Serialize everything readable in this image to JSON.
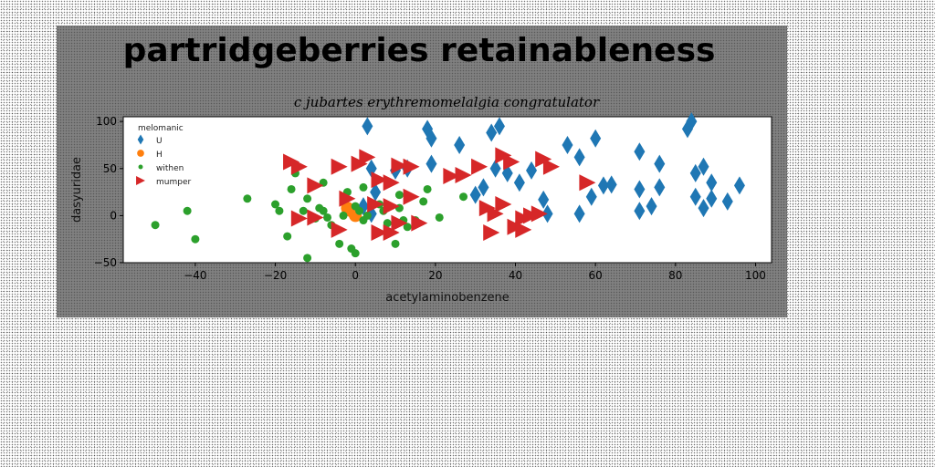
{
  "chart_data": {
    "type": "scatter",
    "title": "partridgeberries retainableness",
    "subtitle": "c jubartes erythremomelalgia congratulator",
    "xlabel": "acetylaminobenzene",
    "ylabel": "dasyuridae",
    "xlim": [
      -58,
      104
    ],
    "ylim": [
      -50,
      105
    ],
    "xticks": [
      -40,
      -20,
      0,
      20,
      40,
      60,
      80,
      100
    ],
    "yticks": [
      -50,
      0,
      50,
      100
    ],
    "grid": false,
    "legend": {
      "title": "melomanic",
      "placement": "top-left"
    },
    "series": [
      {
        "name": "U",
        "marker": "diamond",
        "color": "#1f77b4",
        "points": [
          [
            2,
            10
          ],
          [
            4,
            2
          ],
          [
            5,
            25
          ],
          [
            3,
            95
          ],
          [
            4,
            50
          ],
          [
            10,
            48
          ],
          [
            13,
            50
          ],
          [
            18,
            92
          ],
          [
            19,
            82
          ],
          [
            19,
            55
          ],
          [
            26,
            75
          ],
          [
            30,
            22
          ],
          [
            32,
            30
          ],
          [
            34,
            88
          ],
          [
            35,
            50
          ],
          [
            36,
            95
          ],
          [
            38,
            45
          ],
          [
            41,
            35
          ],
          [
            44,
            48
          ],
          [
            47,
            17
          ],
          [
            48,
            2
          ],
          [
            53,
            75
          ],
          [
            56,
            62
          ],
          [
            56,
            2
          ],
          [
            59,
            20
          ],
          [
            60,
            82
          ],
          [
            62,
            32
          ],
          [
            64,
            33
          ],
          [
            71,
            68
          ],
          [
            71,
            28
          ],
          [
            71,
            5
          ],
          [
            74,
            10
          ],
          [
            76,
            55
          ],
          [
            76,
            30
          ],
          [
            83,
            92
          ],
          [
            84,
            100
          ],
          [
            85,
            45
          ],
          [
            85,
            20
          ],
          [
            87,
            52
          ],
          [
            87,
            8
          ],
          [
            89,
            35
          ],
          [
            89,
            18
          ],
          [
            93,
            15
          ],
          [
            96,
            32
          ]
        ]
      },
      {
        "name": "H",
        "marker": "circle",
        "color": "#ff7f0e",
        "points": [
          [
            -1,
            5
          ],
          [
            0,
            0
          ],
          [
            -2,
            8
          ]
        ]
      },
      {
        "name": "withen",
        "marker": "dot",
        "color": "#2ca02c",
        "points": [
          [
            -50,
            -10
          ],
          [
            -42,
            5
          ],
          [
            -40,
            -25
          ],
          [
            -27,
            18
          ],
          [
            -20,
            12
          ],
          [
            -19,
            5
          ],
          [
            -17,
            -22
          ],
          [
            -16,
            28
          ],
          [
            -15,
            45
          ],
          [
            -13,
            5
          ],
          [
            -12,
            18
          ],
          [
            -12,
            -45
          ],
          [
            -10,
            -3
          ],
          [
            -9,
            8
          ],
          [
            -8,
            35
          ],
          [
            -8,
            5
          ],
          [
            -7,
            -2
          ],
          [
            -6,
            -10
          ],
          [
            -4,
            -30
          ],
          [
            -3,
            0
          ],
          [
            -2,
            25
          ],
          [
            -1,
            -35
          ],
          [
            0,
            -40
          ],
          [
            0,
            10
          ],
          [
            1,
            5
          ],
          [
            2,
            -5
          ],
          [
            2,
            30
          ],
          [
            3,
            0
          ],
          [
            6,
            12
          ],
          [
            7,
            5
          ],
          [
            8,
            -8
          ],
          [
            10,
            -30
          ],
          [
            11,
            8
          ],
          [
            11,
            22
          ],
          [
            12,
            -5
          ],
          [
            13,
            -12
          ],
          [
            15,
            -5
          ],
          [
            17,
            15
          ],
          [
            18,
            28
          ],
          [
            21,
            -2
          ],
          [
            27,
            20
          ]
        ]
      },
      {
        "name": "mumper",
        "marker": "triangle-right",
        "color": "#d62728",
        "points": [
          [
            -16,
            57
          ],
          [
            -14,
            -3
          ],
          [
            -14,
            52
          ],
          [
            -10,
            -2
          ],
          [
            -10,
            32
          ],
          [
            -4,
            52
          ],
          [
            -4,
            -15
          ],
          [
            -2,
            18
          ],
          [
            1,
            55
          ],
          [
            3,
            62
          ],
          [
            5,
            12
          ],
          [
            6,
            38
          ],
          [
            6,
            -18
          ],
          [
            9,
            35
          ],
          [
            9,
            -18
          ],
          [
            9,
            10
          ],
          [
            11,
            -8
          ],
          [
            11,
            53
          ],
          [
            14,
            20
          ],
          [
            14,
            52
          ],
          [
            16,
            -8
          ],
          [
            24,
            42
          ],
          [
            27,
            43
          ],
          [
            31,
            52
          ],
          [
            33,
            8
          ],
          [
            34,
            -18
          ],
          [
            35,
            2
          ],
          [
            37,
            12
          ],
          [
            37,
            64
          ],
          [
            39,
            57
          ],
          [
            40,
            -12
          ],
          [
            42,
            -3
          ],
          [
            42,
            -15
          ],
          [
            44,
            0
          ],
          [
            46,
            2
          ],
          [
            47,
            60
          ],
          [
            49,
            52
          ],
          [
            58,
            35
          ]
        ]
      }
    ]
  }
}
